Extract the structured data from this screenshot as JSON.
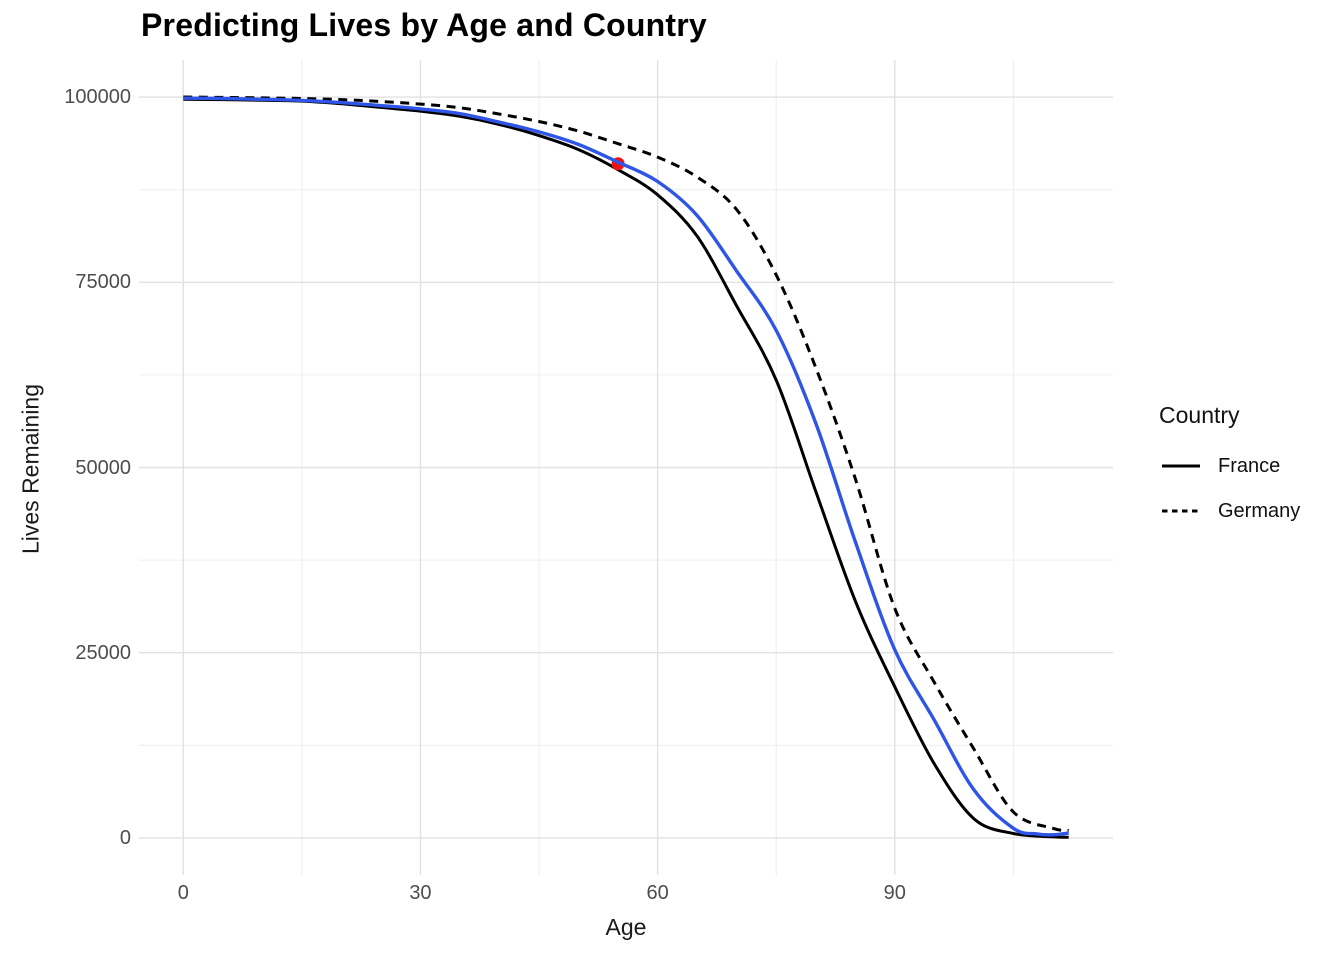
{
  "header": {
    "title": "Predicting Lives by Age and Country"
  },
  "axes": {
    "x": {
      "title": "Age",
      "tick_labels": [
        "0",
        "30",
        "60",
        "90"
      ]
    },
    "y": {
      "title": "Lives Remaining",
      "tick_labels": [
        "0",
        "25000",
        "50000",
        "75000",
        "100000"
      ]
    }
  },
  "legend": {
    "title": "Country",
    "entries": [
      {
        "label": "France",
        "linetype": "solid",
        "color": "#000000"
      },
      {
        "label": "Germany",
        "linetype": "dashed",
        "color": "#000000"
      }
    ]
  },
  "chart_data": {
    "type": "line",
    "title": "Predicting Lives by Age and Country",
    "xlabel": "Age",
    "ylabel": "Lives Remaining",
    "xlim": [
      -5.6,
      117.6
    ],
    "ylim": [
      -5000,
      105000
    ],
    "x_ticks": [
      {
        "value": 0,
        "label": "0"
      },
      {
        "value": 30,
        "label": "30"
      },
      {
        "value": 60,
        "label": "60"
      },
      {
        "value": 90,
        "label": "90"
      }
    ],
    "x_minor_ticks": [
      15,
      45,
      75,
      105
    ],
    "y_ticks": [
      {
        "value": 0,
        "label": "0"
      },
      {
        "value": 25000,
        "label": "25000"
      },
      {
        "value": 50000,
        "label": "50000"
      },
      {
        "value": 75000,
        "label": "75000"
      },
      {
        "value": 100000,
        "label": "100000"
      }
    ],
    "y_minor_ticks": [
      12500,
      37500,
      62500,
      87500
    ],
    "grid": {
      "background": "#ffffff",
      "major_color": "#e2e2e2",
      "minor_color": "#efefef"
    },
    "legend": {
      "title": "Country",
      "position": "right",
      "entries": [
        {
          "label": "France",
          "linetype": "solid",
          "color": "#000000"
        },
        {
          "label": "Germany",
          "linetype": "dashed",
          "color": "#000000"
        }
      ]
    },
    "series": [
      {
        "name": "France",
        "role": "observed",
        "linetype": "solid",
        "color": "#000000",
        "width": 3,
        "x": [
          0,
          5,
          10,
          15,
          20,
          25,
          30,
          35,
          40,
          45,
          50,
          55,
          60,
          65,
          70,
          75,
          80,
          85,
          90,
          95,
          100,
          105,
          110,
          112
        ],
        "y": [
          99700,
          99650,
          99560,
          99450,
          99100,
          98600,
          98100,
          97400,
          96300,
          94800,
          92900,
          90200,
          86800,
          81200,
          71800,
          61800,
          46800,
          32000,
          20400,
          10000,
          2600,
          600,
          150,
          100
        ]
      },
      {
        "name": "Germany",
        "role": "observed",
        "linetype": "dashed",
        "color": "#000000",
        "width": 3,
        "x": [
          0,
          5,
          10,
          15,
          20,
          25,
          30,
          35,
          40,
          45,
          50,
          55,
          60,
          65,
          70,
          75,
          80,
          85,
          90,
          95,
          100,
          105,
          110,
          112
        ],
        "y": [
          100000,
          99950,
          99880,
          99800,
          99650,
          99400,
          99050,
          98550,
          97700,
          96700,
          95400,
          93700,
          91900,
          89200,
          84800,
          76000,
          63500,
          48500,
          31000,
          21000,
          12000,
          3500,
          1300,
          1000
        ]
      },
      {
        "name": "Prediction",
        "role": "fitted",
        "linetype": "solid",
        "color": "#2e55e6",
        "width": 3.4,
        "x": [
          0,
          5,
          10,
          15,
          20,
          25,
          30,
          35,
          40,
          45,
          50,
          55,
          60,
          65,
          70,
          75,
          80,
          85,
          90,
          95,
          100,
          105,
          108,
          110,
          112
        ],
        "y": [
          99850,
          99800,
          99700,
          99550,
          99250,
          98850,
          98400,
          97750,
          96600,
          95300,
          93600,
          91200,
          88600,
          84000,
          76500,
          68500,
          56000,
          40000,
          25400,
          15900,
          6500,
          1300,
          550,
          420,
          650
        ]
      }
    ],
    "annotations": [
      {
        "type": "point",
        "x": 55,
        "y": 91000,
        "color": "#f01010",
        "radius": 6.5
      }
    ]
  }
}
